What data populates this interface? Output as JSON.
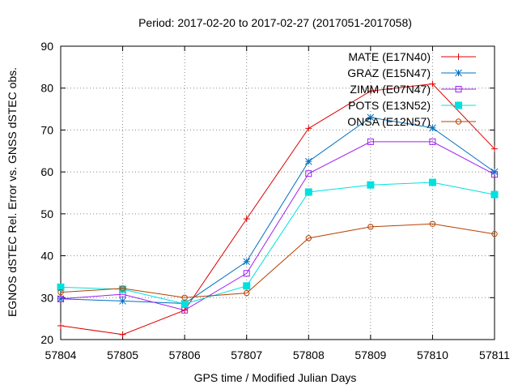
{
  "chart_data": {
    "type": "line",
    "title": "Period: 2017-02-20 to 2017-02-27 (2017051-2017058)",
    "xlabel": "GPS time / Modified Julian Days",
    "ylabel": "EGNOS dSTEC Rel. Error vs. GNSS dSTEC obs.",
    "xlim": [
      57804,
      57811
    ],
    "ylim": [
      20,
      90
    ],
    "xticks": [
      57804,
      57805,
      57806,
      57807,
      57808,
      57809,
      57810,
      57811
    ],
    "yticks": [
      20,
      30,
      40,
      50,
      60,
      70,
      80,
      90
    ],
    "grid": true,
    "legend_position": "top-right",
    "x": [
      57804,
      57805,
      57806,
      57807,
      57808,
      57809,
      57810,
      57811
    ],
    "series": [
      {
        "name": "MATE (E17N40)",
        "color": "#e00000",
        "marker": "plus",
        "values": [
          23.3,
          21.2,
          27.0,
          48.8,
          70.4,
          79.3,
          81.0,
          65.5
        ]
      },
      {
        "name": "GRAZ (E15N47)",
        "color": "#0070c0",
        "marker": "star",
        "values": [
          29.7,
          29.2,
          28.6,
          38.6,
          62.5,
          73.0,
          70.5,
          60.0
        ]
      },
      {
        "name": "ZIMM (E07N47)",
        "color": "#a020f0",
        "marker": "open-square",
        "values": [
          29.7,
          30.8,
          27.0,
          35.8,
          59.6,
          67.2,
          67.2,
          59.4
        ]
      },
      {
        "name": "POTS (E13N52)",
        "color": "#00e0e0",
        "marker": "filled-square",
        "values": [
          32.5,
          32.0,
          28.5,
          32.8,
          55.2,
          56.9,
          57.5,
          54.6
        ]
      },
      {
        "name": "ONSA (E12N57)",
        "color": "#b84000",
        "marker": "circle",
        "values": [
          31.3,
          32.2,
          30.0,
          31.1,
          44.2,
          46.9,
          47.6,
          45.2
        ]
      }
    ]
  }
}
